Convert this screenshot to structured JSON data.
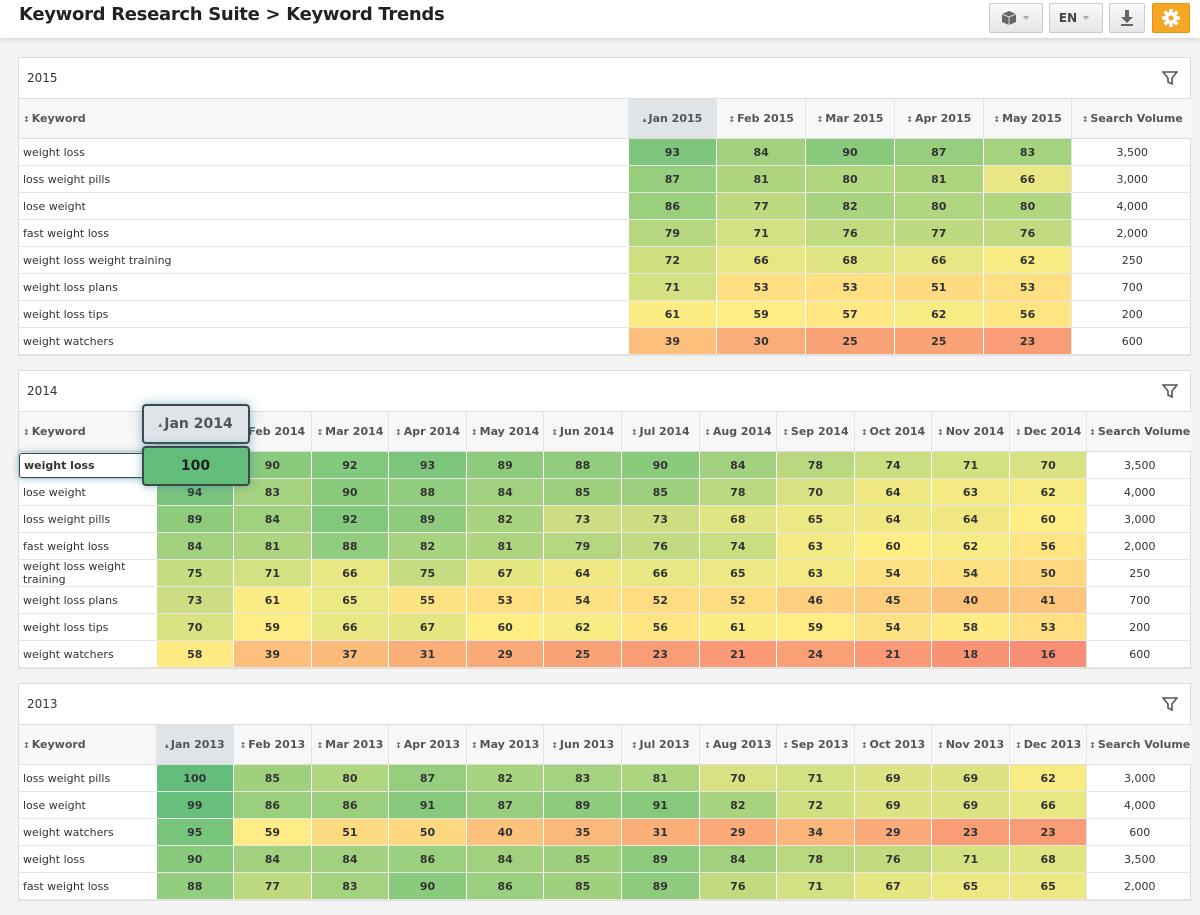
{
  "header": {
    "title": "Keyword Research Suite > Keyword Trends",
    "language": "EN"
  },
  "tables": [
    {
      "title": "2015",
      "columns": [
        "Keyword",
        "Jan 2015",
        "Feb 2015",
        "Mar 2015",
        "Apr 2015",
        "May 2015",
        "Search Volume"
      ],
      "rows": [
        [
          "weight loss",
          93,
          84,
          90,
          87,
          83,
          "3,500"
        ],
        [
          "loss weight pills",
          87,
          81,
          80,
          81,
          66,
          "3,000"
        ],
        [
          "lose weight",
          86,
          77,
          82,
          80,
          80,
          "4,000"
        ],
        [
          "fast weight loss",
          79,
          71,
          76,
          77,
          76,
          "2,000"
        ],
        [
          "weight loss weight training",
          72,
          66,
          68,
          66,
          62,
          "250"
        ],
        [
          "weight loss plans",
          71,
          53,
          53,
          51,
          53,
          "700"
        ],
        [
          "weight loss tips",
          61,
          59,
          57,
          62,
          56,
          "200"
        ],
        [
          "weight watchers",
          39,
          30,
          25,
          25,
          23,
          "600"
        ]
      ]
    },
    {
      "title": "2014",
      "columns": [
        "Keyword",
        "Jan 2014",
        "Feb 2014",
        "Mar 2014",
        "Apr 2014",
        "May 2014",
        "Jun 2014",
        "Jul 2014",
        "Aug 2014",
        "Sep 2014",
        "Oct 2014",
        "Nov 2014",
        "Dec 2014",
        "Search Volume"
      ],
      "rows": [
        [
          "weight loss",
          100,
          90,
          92,
          93,
          89,
          88,
          90,
          84,
          78,
          74,
          71,
          70,
          "3,500"
        ],
        [
          "lose weight",
          94,
          83,
          90,
          88,
          84,
          85,
          85,
          78,
          70,
          64,
          63,
          62,
          "4,000"
        ],
        [
          "loss weight pills",
          89,
          84,
          92,
          89,
          82,
          73,
          73,
          68,
          65,
          64,
          64,
          60,
          "3,000"
        ],
        [
          "fast weight loss",
          84,
          81,
          88,
          82,
          81,
          79,
          76,
          74,
          63,
          60,
          62,
          56,
          "2,000"
        ],
        [
          "weight loss weight training",
          75,
          71,
          66,
          75,
          67,
          64,
          66,
          65,
          63,
          54,
          54,
          50,
          "250"
        ],
        [
          "weight loss plans",
          73,
          61,
          65,
          55,
          53,
          54,
          52,
          52,
          46,
          45,
          40,
          41,
          "700"
        ],
        [
          "weight loss tips",
          70,
          59,
          66,
          67,
          60,
          62,
          56,
          61,
          59,
          54,
          58,
          53,
          "200"
        ],
        [
          "weight watchers",
          58,
          39,
          37,
          31,
          29,
          25,
          23,
          21,
          24,
          21,
          18,
          16,
          "600"
        ]
      ]
    },
    {
      "title": "2013",
      "columns": [
        "Keyword",
        "Jan 2013",
        "Feb 2013",
        "Mar 2013",
        "Apr 2013",
        "May 2013",
        "Jun 2013",
        "Jul 2013",
        "Aug 2013",
        "Sep 2013",
        "Oct 2013",
        "Nov 2013",
        "Dec 2013",
        "Search Volume"
      ],
      "rows": [
        [
          "loss weight pills",
          100,
          85,
          80,
          87,
          82,
          83,
          81,
          70,
          71,
          69,
          69,
          62,
          "3,000"
        ],
        [
          "lose weight",
          99,
          86,
          86,
          91,
          87,
          89,
          91,
          82,
          72,
          69,
          69,
          66,
          "4,000"
        ],
        [
          "weight watchers",
          95,
          59,
          51,
          50,
          40,
          35,
          31,
          29,
          34,
          29,
          23,
          23,
          "600"
        ],
        [
          "weight loss",
          90,
          84,
          84,
          86,
          84,
          85,
          89,
          84,
          78,
          76,
          71,
          68,
          "3,500"
        ],
        [
          "fast weight loss",
          88,
          77,
          83,
          90,
          86,
          85,
          89,
          76,
          71,
          67,
          65,
          65,
          "2,000"
        ]
      ]
    }
  ]
}
